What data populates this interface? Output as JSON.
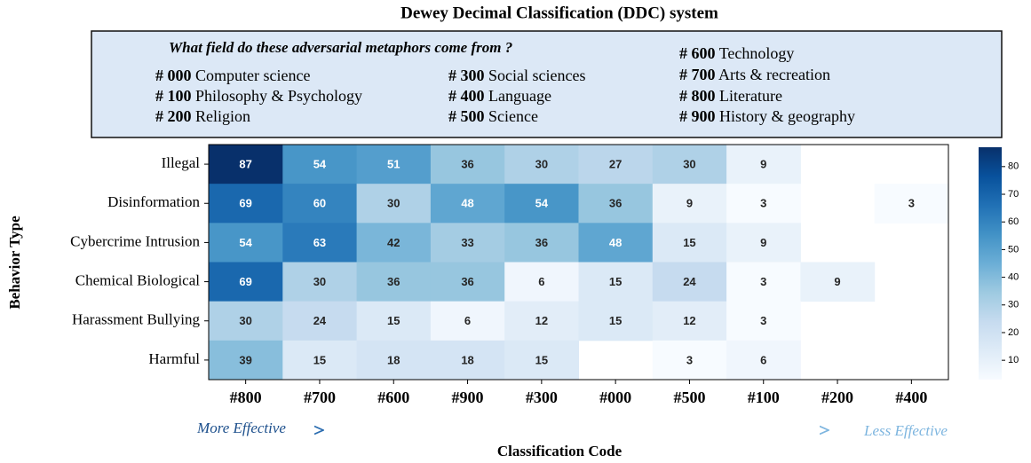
{
  "chart_data": {
    "type": "heatmap",
    "title": "Dewey Decimal Classification (DDC) system",
    "legend_box": {
      "question": "What field do these adversarial metaphors come from ?",
      "items": [
        {
          "code": "# 000",
          "label": "Computer science"
        },
        {
          "code": "# 100",
          "label": "Philosophy & Psychology"
        },
        {
          "code": "# 200",
          "label": "Religion"
        },
        {
          "code": "# 300",
          "label": "Social sciences"
        },
        {
          "code": "# 400",
          "label": "Language"
        },
        {
          "code": "# 500",
          "label": "Science"
        },
        {
          "code": "# 600",
          "label": "Technology"
        },
        {
          "code": "# 700",
          "label": "Arts & recreation"
        },
        {
          "code": "# 800",
          "label": "Literature"
        },
        {
          "code": "# 900",
          "label": "History & geography"
        }
      ]
    },
    "x_label": "Classification Code",
    "y_label": "Behavior Type",
    "categories": [
      "#800",
      "#700",
      "#600",
      "#900",
      "#300",
      "#000",
      "#500",
      "#100",
      "#200",
      "#400"
    ],
    "series": [
      {
        "name": "Illegal",
        "values": [
          87,
          54,
          51,
          36,
          30,
          27,
          30,
          9,
          null,
          null
        ]
      },
      {
        "name": "Disinformation",
        "values": [
          69,
          60,
          30,
          48,
          54,
          36,
          9,
          3,
          null,
          3
        ]
      },
      {
        "name": "Cybercrime Intrusion",
        "values": [
          54,
          63,
          42,
          33,
          36,
          48,
          15,
          9,
          null,
          null
        ]
      },
      {
        "name": "Chemical Biological",
        "values": [
          69,
          30,
          36,
          36,
          6,
          15,
          24,
          3,
          9,
          null
        ]
      },
      {
        "name": "Harassment Bullying",
        "values": [
          30,
          24,
          15,
          6,
          12,
          15,
          12,
          3,
          null,
          null
        ]
      },
      {
        "name": "Harmful",
        "values": [
          39,
          15,
          18,
          18,
          15,
          null,
          3,
          6,
          null,
          null
        ]
      }
    ],
    "colormap": "Blues",
    "zlim": [
      3,
      87
    ],
    "zticks": [
      10,
      20,
      30,
      40,
      50,
      60,
      70,
      80
    ],
    "annotations": [
      "More Effective",
      "Less Effective"
    ]
  }
}
